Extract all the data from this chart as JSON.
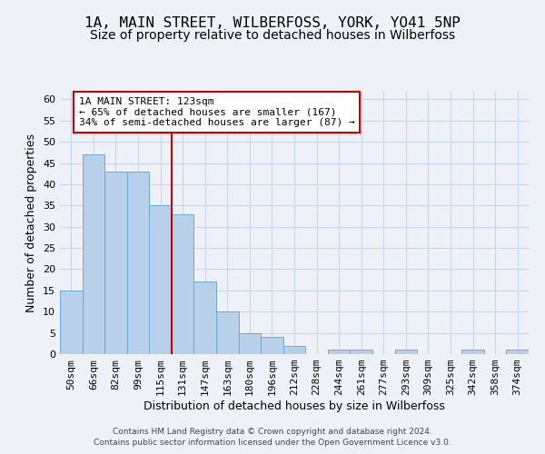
{
  "title": "1A, MAIN STREET, WILBERFOSS, YORK, YO41 5NP",
  "subtitle": "Size of property relative to detached houses in Wilberfoss",
  "xlabel": "Distribution of detached houses by size in Wilberfoss",
  "ylabel": "Number of detached properties",
  "bar_values": [
    15,
    47,
    43,
    43,
    35,
    33,
    17,
    10,
    5,
    4,
    2,
    0,
    1,
    1,
    0,
    1,
    0,
    0,
    1,
    0,
    1
  ],
  "bin_labels": [
    "50sqm",
    "66sqm",
    "82sqm",
    "99sqm",
    "115sqm",
    "131sqm",
    "147sqm",
    "163sqm",
    "180sqm",
    "196sqm",
    "212sqm",
    "228sqm",
    "244sqm",
    "261sqm",
    "277sqm",
    "293sqm",
    "309sqm",
    "325sqm",
    "342sqm",
    "358sqm",
    "374sqm"
  ],
  "bar_color": "#b8d0ea",
  "bar_edge_color": "#6aaad4",
  "grid_color": "#c8d4e8",
  "background_color": "#eef2f8",
  "red_line_x": 4.5,
  "annotation_text": "1A MAIN STREET: 123sqm\n← 65% of detached houses are smaller (167)\n34% of semi-detached houses are larger (87) →",
  "annotation_box_color": "#ffffff",
  "annotation_box_edge": "#cc0000",
  "ylim": [
    0,
    62
  ],
  "yticks": [
    0,
    5,
    10,
    15,
    20,
    25,
    30,
    35,
    40,
    45,
    50,
    55,
    60
  ],
  "title_fontsize": 11.5,
  "subtitle_fontsize": 10,
  "xlabel_fontsize": 9,
  "ylabel_fontsize": 9,
  "tick_fontsize": 8,
  "footer_line1": "Contains HM Land Registry data © Crown copyright and database right 2024.",
  "footer_line2": "Contains public sector information licensed under the Open Government Licence v3.0."
}
